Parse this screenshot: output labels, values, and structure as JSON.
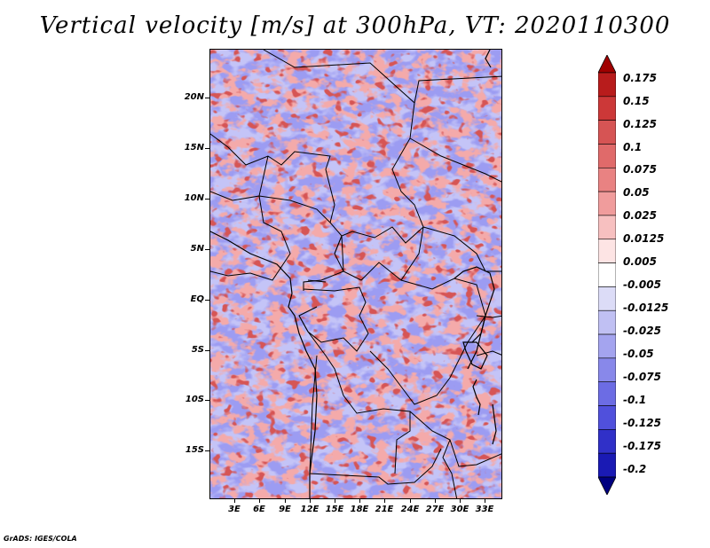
{
  "title": "Vertical velocity [m/s] at 300hPa, VT: 2020110300",
  "credit": "GrADS: IGES/COLA",
  "map": {
    "lat_labels": [
      "20N",
      "15N",
      "10N",
      "5N",
      "EQ",
      "5S",
      "10S",
      "15S"
    ],
    "lon_labels": [
      "3E",
      "6E",
      "9E",
      "12E",
      "15E",
      "18E",
      "21E",
      "24E",
      "27E",
      "30E",
      "33E"
    ],
    "background_colors": [
      "#7070ee",
      "#9c9cf2",
      "#c4c4f7",
      "#ffffff",
      "#f4aaaa",
      "#e97a7a",
      "#d65454"
    ]
  },
  "colorbar": {
    "labels": [
      "0.175",
      "0.15",
      "0.125",
      "0.1",
      "0.075",
      "0.05",
      "0.025",
      "0.0125",
      "0.005",
      "-0.005",
      "-0.0125",
      "-0.025",
      "-0.05",
      "-0.075",
      "-0.1",
      "-0.125",
      "-0.175",
      "-0.2"
    ],
    "colors": [
      "#a00000",
      "#b81c1c",
      "#cc3838",
      "#d65454",
      "#e06a6a",
      "#e98282",
      "#f09c9c",
      "#f7c0c0",
      "#fde4e4",
      "#ffffff",
      "#dcdcf7",
      "#c0c0f3",
      "#a4a4ef",
      "#8888ea",
      "#6c6ce4",
      "#5050dc",
      "#3030c8",
      "#1a1ab4",
      "#000080"
    ]
  }
}
